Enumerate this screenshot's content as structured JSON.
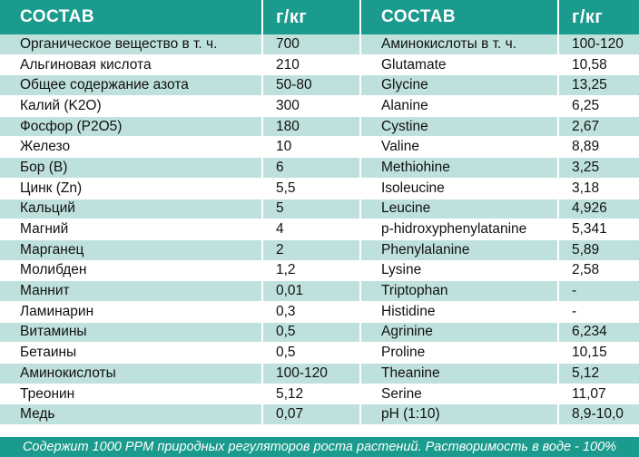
{
  "header": {
    "col1": "СОСТАВ",
    "col2": "г/кг",
    "col3": "СОСТАВ",
    "col4": "г/кг"
  },
  "rows": [
    [
      "Органическое вещество в т. ч.",
      "700",
      "Аминокислоты в т. ч.",
      "100-120"
    ],
    [
      "Альгиновая кислота",
      "210",
      "Glutamate",
      "10,58"
    ],
    [
      "Общее содержание азота",
      "50-80",
      "Glycine",
      "13,25"
    ],
    [
      "Калий (K2O)",
      "300",
      "Alanine",
      "6,25"
    ],
    [
      "Фосфор (P2O5)",
      "180",
      "Cystine",
      "2,67"
    ],
    [
      "Железо",
      "10",
      "Valine",
      "8,89"
    ],
    [
      "Бор (B)",
      "6",
      "Methiohine",
      "3,25"
    ],
    [
      "Цинк (Zn)",
      "5,5",
      "Isoleucine",
      "3,18"
    ],
    [
      "Кальций",
      "5",
      "Leucine",
      "4,926"
    ],
    [
      "Магний",
      "4",
      "p-hidroxyphenylatanine",
      "5,341"
    ],
    [
      "Марганец",
      "2",
      "Phenylalanine",
      "5,89"
    ],
    [
      "Молибден",
      "1,2",
      "Lysine",
      "2,58"
    ],
    [
      "Маннит",
      "0,01",
      "Triptophan",
      "-"
    ],
    [
      "Ламинарин",
      "0,3",
      "Histidine",
      "-"
    ],
    [
      "Витамины",
      "0,5",
      "Agrinine",
      "6,234"
    ],
    [
      "Бетаины",
      "0,5",
      "Proline",
      "10,15"
    ],
    [
      "Аминокислоты",
      "100-120",
      "Theanine",
      "5,12"
    ],
    [
      "Треонин",
      "5,12",
      "Serine",
      "11,07"
    ],
    [
      "Медь",
      "0,07",
      "pH (1:10)",
      "8,9-10,0"
    ]
  ],
  "footer": "Содержит 1000 PPM природных регуляторов роста растений. Растворимость в воде - 100%",
  "colors": {
    "header_bg": "#1a9b8d",
    "stripe_bg": "#bfe1dd",
    "text": "#111111"
  }
}
